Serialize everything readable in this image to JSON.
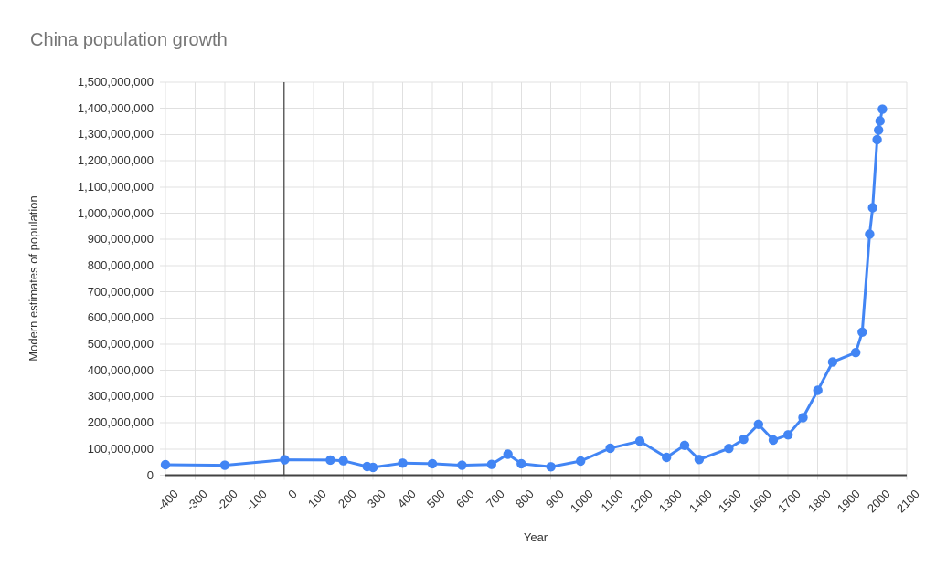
{
  "chart_data": {
    "type": "line",
    "title": "China population growth",
    "xlabel": "Year",
    "ylabel": "Modern estimates of population",
    "xlim": [
      -400,
      2100
    ],
    "x_tick_step": 100,
    "ylim": [
      0,
      1500000000
    ],
    "y_tick_step": 100000000,
    "grid": true,
    "legend": "none",
    "x_tick_labels": [
      "-400",
      "-300",
      "-200",
      "-100",
      "0",
      "100",
      "200",
      "300",
      "400",
      "500",
      "600",
      "700",
      "800",
      "900",
      "1000",
      "1100",
      "1200",
      "1300",
      "1400",
      "1500",
      "1600",
      "1700",
      "1800",
      "1900",
      "2000",
      "2100"
    ],
    "y_tick_labels": [
      "0",
      "100,000,000",
      "200,000,000",
      "300,000,000",
      "400,000,000",
      "500,000,000",
      "600,000,000",
      "700,000,000",
      "800,000,000",
      "900,000,000",
      "1,000,000,000",
      "1,100,000,000",
      "1,200,000,000",
      "1,300,000,000",
      "1,400,000,000",
      "1,500,000,000"
    ],
    "series": [
      {
        "name": "Modern estimates of population",
        "color": "#4285f4",
        "points": [
          [
            -400,
            40000000
          ],
          [
            -200,
            38000000
          ],
          [
            2,
            59000000
          ],
          [
            156,
            58000000
          ],
          [
            200,
            55000000
          ],
          [
            280,
            33000000
          ],
          [
            300,
            30000000
          ],
          [
            400,
            46000000
          ],
          [
            500,
            44000000
          ],
          [
            600,
            38000000
          ],
          [
            700,
            41000000
          ],
          [
            755,
            80000000
          ],
          [
            800,
            44000000
          ],
          [
            900,
            32000000
          ],
          [
            1000,
            54000000
          ],
          [
            1100,
            103000000
          ],
          [
            1200,
            130000000
          ],
          [
            1290,
            68000000
          ],
          [
            1351,
            114000000
          ],
          [
            1400,
            60000000
          ],
          [
            1500,
            102000000
          ],
          [
            1550,
            137000000
          ],
          [
            1600,
            194000000
          ],
          [
            1650,
            134000000
          ],
          [
            1700,
            154000000
          ],
          [
            1750,
            220000000
          ],
          [
            1800,
            324000000
          ],
          [
            1850,
            432000000
          ],
          [
            1928,
            468000000
          ],
          [
            1950,
            546000000
          ],
          [
            1975,
            920000000
          ],
          [
            1985,
            1021000000
          ],
          [
            2000,
            1281000000
          ],
          [
            2005,
            1317000000
          ],
          [
            2010,
            1352000000
          ],
          [
            2018,
            1397000000
          ]
        ]
      }
    ]
  },
  "colors": {
    "series_blue": "#4285f4",
    "gridline": "#e0e0e0",
    "zero_axis_vertical": "#616161",
    "zero_axis_horizontal": "#424242",
    "title_gray": "#757575",
    "tick_text": "#333333",
    "background": "#ffffff"
  }
}
